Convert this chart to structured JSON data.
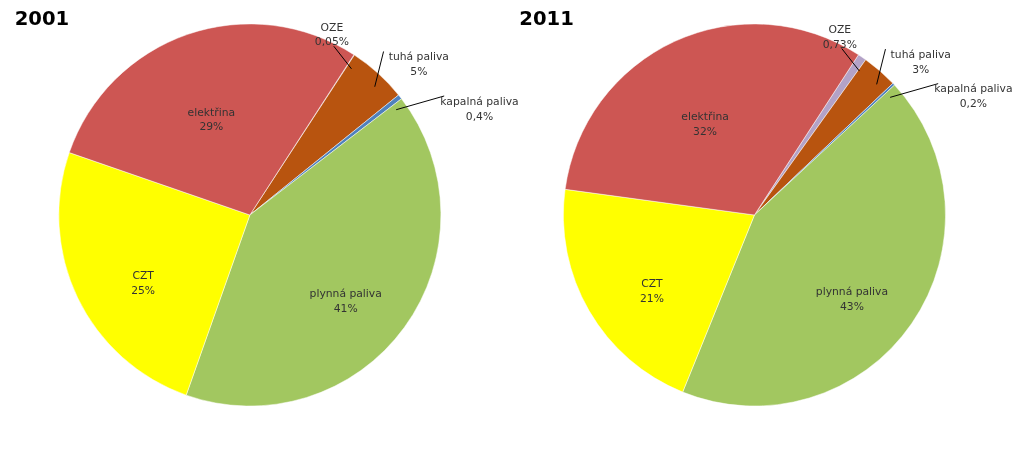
{
  "chart_data": [
    {
      "type": "pie",
      "title": "2001",
      "categories": [
        "OZE",
        "tuhá paliva",
        "kapalná paliva",
        "plynná paliva",
        "CZT",
        "elektřina"
      ],
      "values": [
        0.05,
        5,
        0.4,
        41,
        25,
        29
      ],
      "value_labels": [
        "0,05%",
        "5%",
        "0,4%",
        "41%",
        "25%",
        "29%"
      ],
      "colors": [
        "#b3a2c7",
        "#b8540f",
        "#4f81bd",
        "#a2c760",
        "#ffff00",
        "#cd5653"
      ]
    },
    {
      "type": "pie",
      "title": "2011",
      "categories": [
        "OZE",
        "tuhá paliva",
        "kapalná paliva",
        "plynná paliva",
        "CZT",
        "elektřina"
      ],
      "values": [
        0.73,
        3,
        0.2,
        43,
        21,
        32
      ],
      "value_labels": [
        "0,73%",
        "3%",
        "0,2%",
        "43%",
        "21%",
        "32%"
      ],
      "colors": [
        "#b3a2c7",
        "#b8540f",
        "#4f81bd",
        "#a2c760",
        "#ffff00",
        "#cd5653"
      ]
    }
  ]
}
